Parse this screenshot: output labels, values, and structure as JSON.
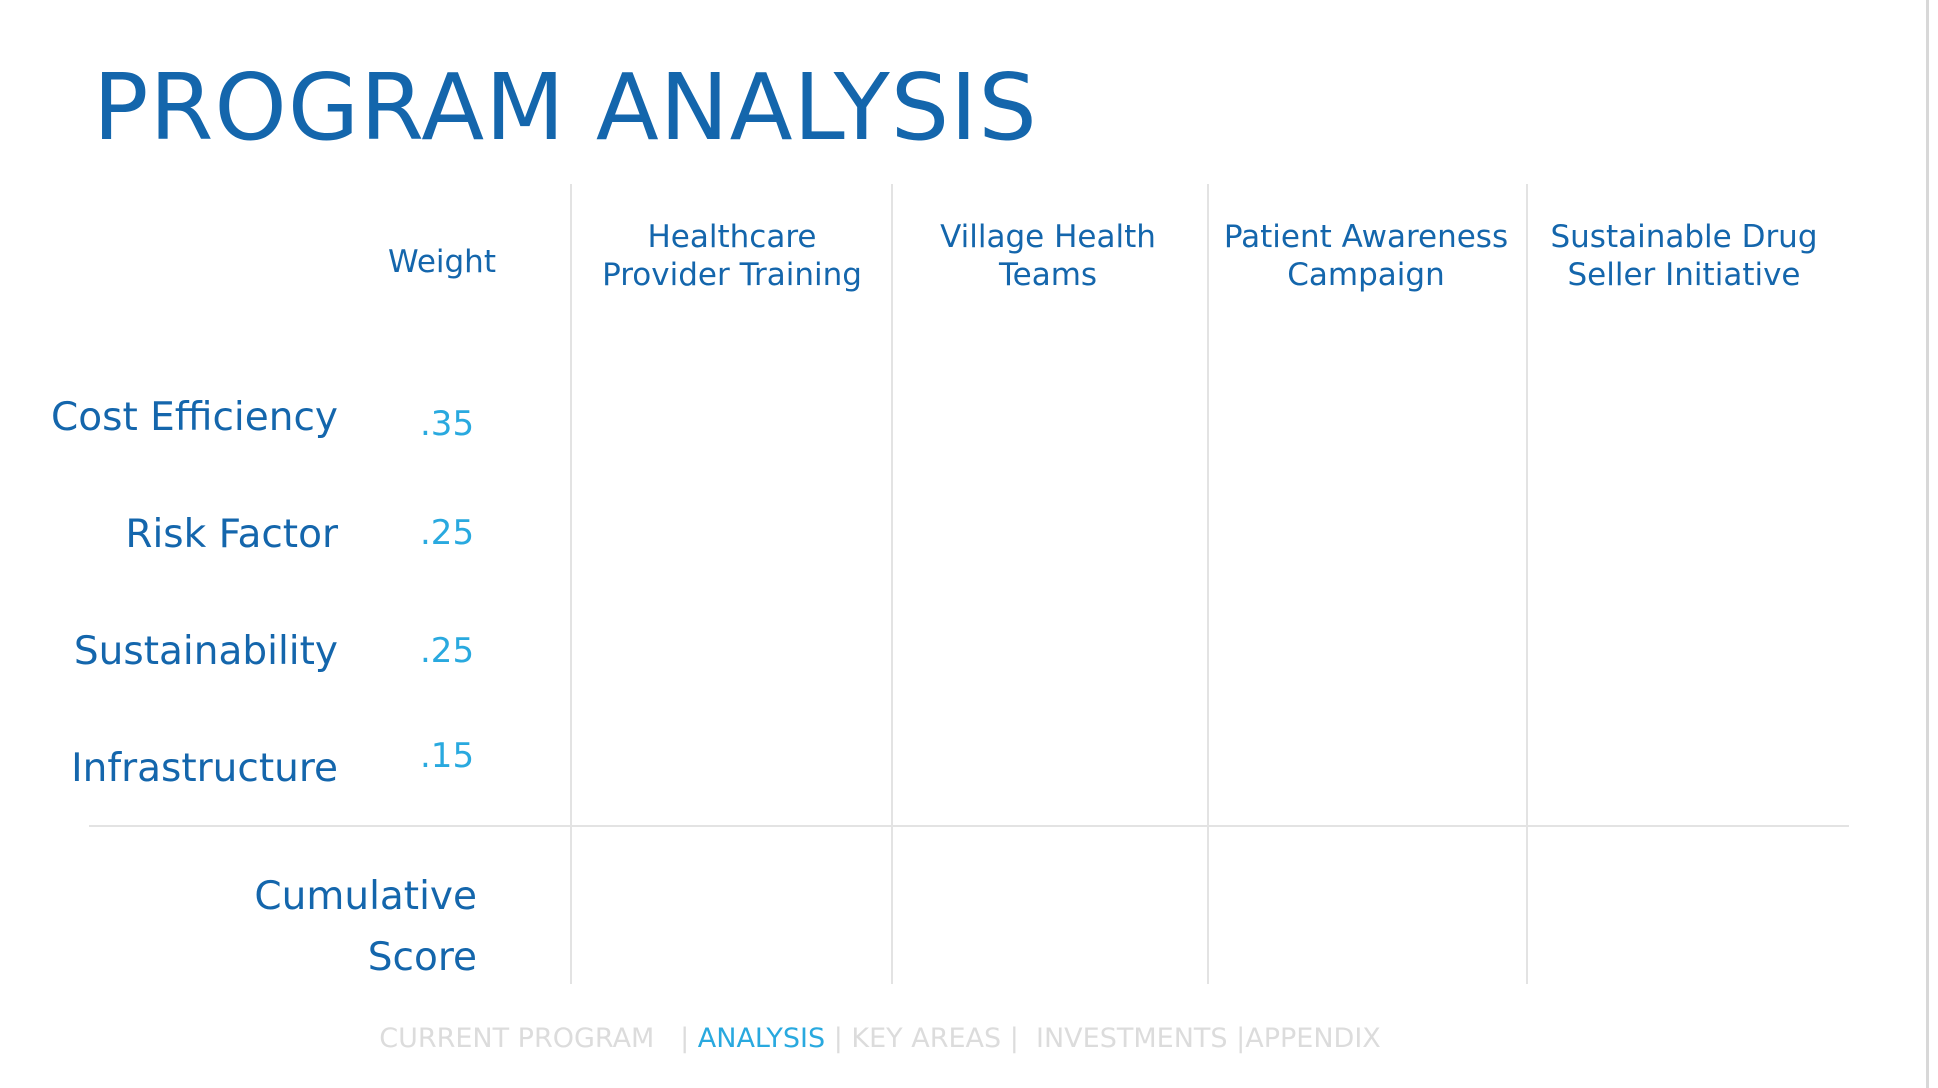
{
  "title": "PROGRAM ANALYSIS",
  "table": {
    "weight_header": "Weight",
    "columns": [
      {
        "line1": "Healthcare",
        "line2": "Provider Training"
      },
      {
        "line1": "Village Health",
        "line2": "Teams"
      },
      {
        "line1": "Patient Awareness",
        "line2": "Campaign"
      },
      {
        "line1": "Sustainable Drug",
        "line2": "Seller Initiative"
      }
    ],
    "rows": [
      {
        "label": "Cost Efficiency",
        "weight": ".35"
      },
      {
        "label": "Risk Factor",
        "weight": ".25"
      },
      {
        "label": "Sustainability",
        "weight": ".25"
      },
      {
        "label": "Infrastructure",
        "weight": ".15"
      }
    ],
    "cumulative": {
      "line1": "Cumulative",
      "line2": "Score"
    }
  },
  "footer_nav": {
    "items": [
      "CURRENT PROGRAM",
      "ANALYSIS",
      "KEY AREAS",
      "INVESTMENTS",
      "APPENDIX"
    ],
    "active": "ANALYSIS",
    "colors": {
      "inactive": "#dcdcdc",
      "active": "#29a9df"
    }
  },
  "colors": {
    "title": "#1466ac",
    "label": "#1466ac",
    "weight": "#29a9df",
    "grid": "#e3e3e3"
  }
}
